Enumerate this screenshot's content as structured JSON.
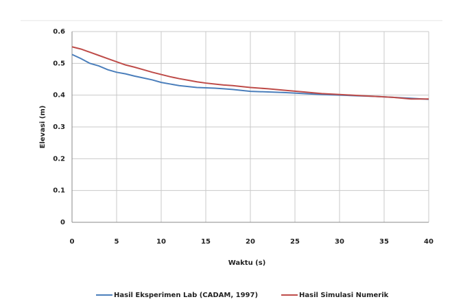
{
  "chart_data": {
    "type": "line",
    "x_label": "Waktu (s)",
    "y_label": "Elevasi (m)",
    "x": [
      0,
      1,
      2,
      3,
      4,
      5,
      6,
      7,
      8,
      9,
      10,
      11,
      12,
      13,
      14,
      15,
      16,
      17,
      18,
      19,
      20,
      22,
      24,
      26,
      28,
      30,
      32,
      34,
      36,
      38,
      40
    ],
    "series": [
      {
        "name": "Hasil Eksperimen Lab (CADAM, 1997)",
        "color": "#4a7ebb",
        "values": [
          0.528,
          0.515,
          0.5,
          0.492,
          0.48,
          0.472,
          0.467,
          0.46,
          0.454,
          0.448,
          0.44,
          0.435,
          0.43,
          0.427,
          0.424,
          0.423,
          0.422,
          0.42,
          0.418,
          0.415,
          0.412,
          0.41,
          0.408,
          0.405,
          0.402,
          0.4,
          0.398,
          0.396,
          0.393,
          0.39,
          0.387
        ]
      },
      {
        "name": "Hasil Simulasi Numerik",
        "color": "#be4b48",
        "values": [
          0.552,
          0.545,
          0.535,
          0.525,
          0.515,
          0.505,
          0.495,
          0.488,
          0.48,
          0.472,
          0.465,
          0.458,
          0.452,
          0.447,
          0.442,
          0.438,
          0.435,
          0.432,
          0.43,
          0.427,
          0.424,
          0.42,
          0.415,
          0.41,
          0.405,
          0.402,
          0.399,
          0.396,
          0.393,
          0.388,
          0.388
        ]
      }
    ],
    "xlim": [
      0,
      40
    ],
    "xticks": [
      0,
      5,
      10,
      15,
      20,
      25,
      30,
      35,
      40
    ],
    "ylim": [
      0,
      0.6
    ],
    "yticks": [
      0,
      0.1,
      0.2,
      0.3,
      0.4,
      0.5,
      0.6
    ],
    "grid": true,
    "legend": "bottom"
  }
}
